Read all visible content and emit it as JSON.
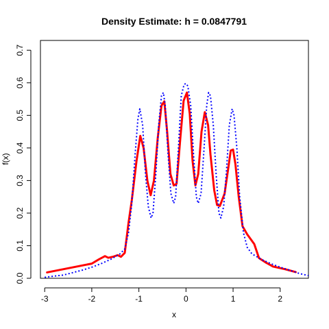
{
  "chart_data": {
    "type": "line",
    "title": "Density Estimate: h = 0.0847791",
    "xlabel": "x",
    "ylabel": "f(x)",
    "xlim": [
      -3.09,
      2.6
    ],
    "ylim": [
      0,
      0.73
    ],
    "x_ticks": [
      {
        "value": -3,
        "label": "-3"
      },
      {
        "value": -2,
        "label": "-2"
      },
      {
        "value": -1,
        "label": "-1"
      },
      {
        "value": 0,
        "label": "0"
      },
      {
        "value": 1,
        "label": "1"
      },
      {
        "value": 2,
        "label": "2"
      }
    ],
    "y_ticks": [
      {
        "value": 0.0,
        "label": "0.0"
      },
      {
        "value": 0.1,
        "label": "0.1"
      },
      {
        "value": 0.2,
        "label": "0.2"
      },
      {
        "value": 0.3,
        "label": "0.3"
      },
      {
        "value": 0.4,
        "label": "0.4"
      },
      {
        "value": 0.5,
        "label": "0.5"
      },
      {
        "value": 0.6,
        "label": "0.6"
      },
      {
        "value": 0.7,
        "label": "0.7"
      }
    ],
    "series": [
      {
        "style": "solid",
        "color": "#ff0000",
        "x": [
          -2.95,
          -2.0,
          -1.85,
          -1.72,
          -1.65,
          -1.55,
          -1.45,
          -1.38,
          -1.3,
          -1.22,
          -1.15,
          -1.05,
          -0.97,
          -0.9,
          -0.82,
          -0.75,
          -0.68,
          -0.6,
          -0.52,
          -0.46,
          -0.4,
          -0.33,
          -0.26,
          -0.2,
          -0.12,
          -0.05,
          0.02,
          0.08,
          0.14,
          0.2,
          0.26,
          0.33,
          0.4,
          0.47,
          0.52,
          0.6,
          0.66,
          0.72,
          0.82,
          0.9,
          0.95,
          1.0,
          1.05,
          1.12,
          1.2,
          1.3,
          1.45,
          1.55,
          1.7,
          1.85,
          2.1,
          2.33
        ],
        "y": [
          0.018,
          0.045,
          0.058,
          0.068,
          0.063,
          0.066,
          0.071,
          0.066,
          0.078,
          0.17,
          0.24,
          0.36,
          0.437,
          0.4,
          0.3,
          0.255,
          0.3,
          0.43,
          0.53,
          0.543,
          0.45,
          0.32,
          0.285,
          0.29,
          0.43,
          0.545,
          0.57,
          0.505,
          0.36,
          0.285,
          0.32,
          0.45,
          0.51,
          0.47,
          0.38,
          0.27,
          0.225,
          0.222,
          0.26,
          0.34,
          0.392,
          0.395,
          0.35,
          0.25,
          0.16,
          0.135,
          0.105,
          0.062,
          0.048,
          0.036,
          0.028,
          0.019
        ]
      },
      {
        "style": "dotted",
        "color": "#0000ff",
        "x": [
          -3.0,
          -2.6,
          -2.2,
          -2.0,
          -1.8,
          -1.6,
          -1.4,
          -1.3,
          -1.22,
          -1.15,
          -1.08,
          -1.02,
          -0.98,
          -0.92,
          -0.86,
          -0.8,
          -0.74,
          -0.7,
          -0.64,
          -0.58,
          -0.52,
          -0.48,
          -0.44,
          -0.38,
          -0.32,
          -0.26,
          -0.22,
          -0.16,
          -0.1,
          -0.04,
          0.0,
          0.04,
          0.1,
          0.16,
          0.22,
          0.26,
          0.32,
          0.38,
          0.44,
          0.48,
          0.52,
          0.58,
          0.64,
          0.7,
          0.74,
          0.8,
          0.86,
          0.92,
          0.98,
          1.02,
          1.08,
          1.14,
          1.22,
          1.3,
          1.4,
          1.6,
          1.8,
          2.0,
          2.2,
          2.4,
          2.6
        ],
        "y": [
          0.003,
          0.01,
          0.025,
          0.034,
          0.045,
          0.058,
          0.075,
          0.09,
          0.14,
          0.23,
          0.38,
          0.49,
          0.52,
          0.47,
          0.32,
          0.22,
          0.185,
          0.2,
          0.32,
          0.47,
          0.56,
          0.57,
          0.53,
          0.38,
          0.26,
          0.23,
          0.25,
          0.4,
          0.56,
          0.595,
          0.598,
          0.59,
          0.53,
          0.38,
          0.25,
          0.23,
          0.26,
          0.39,
          0.53,
          0.57,
          0.56,
          0.47,
          0.32,
          0.2,
          0.185,
          0.22,
          0.33,
          0.47,
          0.52,
          0.5,
          0.4,
          0.25,
          0.14,
          0.095,
          0.075,
          0.058,
          0.045,
          0.034,
          0.025,
          0.015,
          0.008
        ]
      }
    ]
  }
}
